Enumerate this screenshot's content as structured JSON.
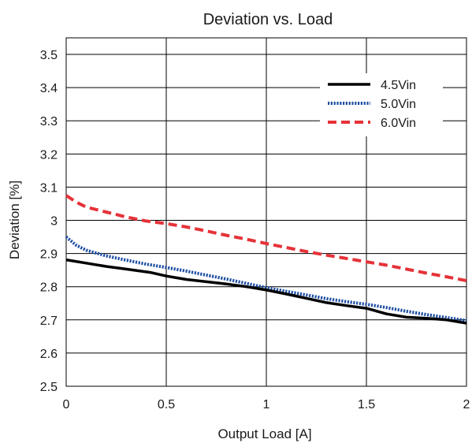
{
  "chart_data": {
    "type": "line",
    "title": "Deviation vs. Load",
    "xlabel": "Output Load [A]",
    "ylabel": "Deviation [%]",
    "xlim": [
      0,
      2
    ],
    "ylim": [
      2.5,
      3.55
    ],
    "xticks": [
      0,
      0.5,
      1,
      1.5,
      2
    ],
    "xtick_labels": [
      "0",
      "0.5",
      "1",
      "1.5",
      "2"
    ],
    "yticks": [
      2.5,
      2.6,
      2.7,
      2.8,
      2.9,
      3.0,
      3.1,
      3.2,
      3.3,
      3.4,
      3.5
    ],
    "ytick_labels": [
      "2.5",
      "2.6",
      "2.7",
      "2.8",
      "2.9",
      "3",
      "3.1",
      "3.2",
      "3.3",
      "3.4",
      "3.5"
    ],
    "grid": true,
    "legend_position": "top-right",
    "series": [
      {
        "name": "4.5Vin",
        "color": "#000000",
        "style": "solid",
        "x": [
          0,
          0.1,
          0.2,
          0.3,
          0.42,
          0.5,
          0.6,
          0.7,
          0.8,
          0.9,
          1.0,
          1.1,
          1.2,
          1.3,
          1.4,
          1.5,
          1.6,
          1.7,
          1.8,
          1.9,
          2.0
        ],
        "y": [
          2.881,
          2.871,
          2.861,
          2.853,
          2.843,
          2.832,
          2.822,
          2.815,
          2.808,
          2.8,
          2.79,
          2.778,
          2.765,
          2.752,
          2.743,
          2.735,
          2.718,
          2.708,
          2.705,
          2.7,
          2.69
        ]
      },
      {
        "name": "5.0Vin",
        "color": "#1f4fa3",
        "style": "dotted",
        "x": [
          0,
          0.05,
          0.1,
          0.2,
          0.3,
          0.4,
          0.5,
          0.6,
          0.7,
          0.8,
          0.9,
          1.0,
          1.1,
          1.2,
          1.3,
          1.4,
          1.5,
          1.6,
          1.7,
          1.8,
          1.9,
          2.0
        ],
        "y": [
          2.95,
          2.925,
          2.91,
          2.893,
          2.88,
          2.868,
          2.858,
          2.847,
          2.835,
          2.823,
          2.81,
          2.797,
          2.786,
          2.775,
          2.764,
          2.755,
          2.747,
          2.737,
          2.726,
          2.716,
          2.707,
          2.698
        ]
      },
      {
        "name": "6.0Vin",
        "color": "#e53238",
        "style": "dashed",
        "x": [
          0,
          0.05,
          0.1,
          0.2,
          0.3,
          0.4,
          0.5,
          0.6,
          0.7,
          0.8,
          0.9,
          1.0,
          1.1,
          1.2,
          1.3,
          1.4,
          1.5,
          1.6,
          1.7,
          1.8,
          1.9,
          2.0
        ],
        "y": [
          3.075,
          3.055,
          3.04,
          3.025,
          3.01,
          2.998,
          2.99,
          2.98,
          2.968,
          2.955,
          2.943,
          2.93,
          2.918,
          2.906,
          2.895,
          2.885,
          2.875,
          2.865,
          2.853,
          2.841,
          2.83,
          2.818
        ]
      }
    ]
  }
}
